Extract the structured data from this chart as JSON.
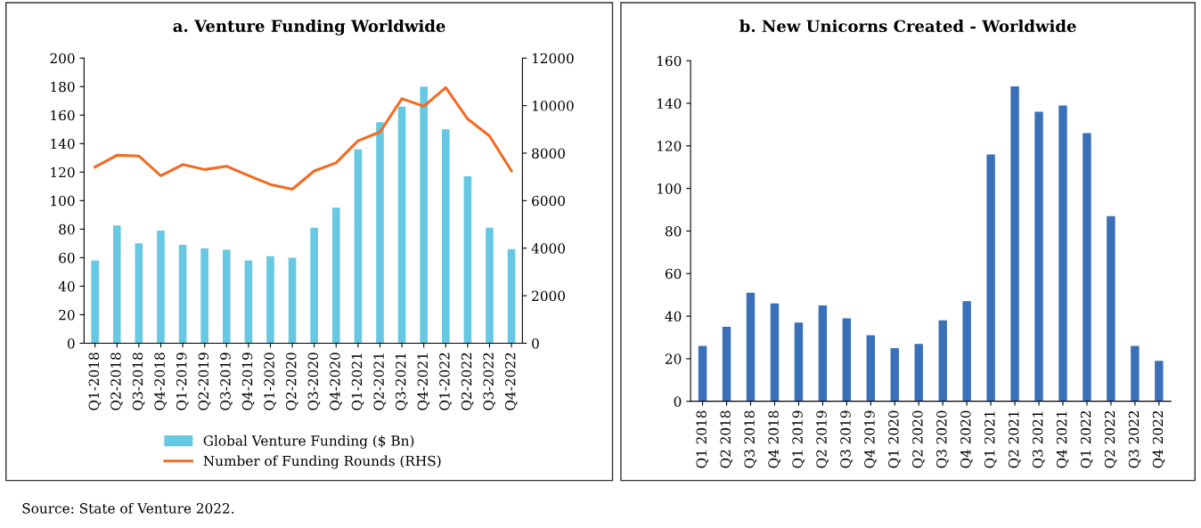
{
  "chart_data": [
    {
      "type": "bar",
      "title": "a. Venture Funding Worldwide",
      "categories": [
        "Q1-2018",
        "Q2-2018",
        "Q3-2018",
        "Q4-2018",
        "Q1-2019",
        "Q2-2019",
        "Q3-2019",
        "Q4-2019",
        "Q1-2020",
        "Q2-2020",
        "Q3-2020",
        "Q4-2020",
        "Q1-2021",
        "Q2-2021",
        "Q3-2021",
        "Q4-2021",
        "Q1-2022",
        "Q2-2022",
        "Q3-2022",
        "Q4-2022"
      ],
      "series": [
        {
          "name": "Global Venture Funding ($ Bn)",
          "type": "bar",
          "color": "#66c8e2",
          "values": [
            58,
            82.5,
            70,
            79,
            69,
            66.5,
            65.5,
            58,
            61,
            60,
            81,
            95,
            136,
            155,
            166,
            180,
            150,
            117,
            81,
            66
          ]
        },
        {
          "name": "Number of Funding Rounds (RHS)",
          "type": "line",
          "axis": "y2",
          "color": "#f26b21",
          "values": [
            7410,
            7910,
            7880,
            7050,
            7520,
            7310,
            7450,
            7060,
            6680,
            6480,
            7250,
            7590,
            8520,
            8890,
            10290,
            9970,
            10760,
            9440,
            8720,
            7250
          ]
        }
      ],
      "ylim": [
        0,
        200
      ],
      "yticks": [
        0,
        20,
        40,
        60,
        80,
        100,
        120,
        140,
        160,
        180,
        200
      ],
      "y2lim": [
        0,
        12000
      ],
      "y2ticks": [
        0,
        2000,
        4000,
        6000,
        8000,
        10000,
        12000
      ],
      "legend": "bottom",
      "grid": false,
      "annotations": [
        "Source: State of Venture 2022."
      ]
    },
    {
      "type": "bar",
      "title": "b. New Unicorns Created - Worldwide",
      "categories": [
        "Q1 2018",
        "Q2 2018",
        "Q3 2018",
        "Q4 2018",
        "Q1 2019",
        "Q2 2019",
        "Q3 2019",
        "Q4 2019",
        "Q1 2020",
        "Q2 2020",
        "Q3 2020",
        "Q4 2020",
        "Q1 2021",
        "Q2 2021",
        "Q3 2021",
        "Q4 2021",
        "Q1 2022",
        "Q2 2022",
        "Q3 2022",
        "Q4 2022"
      ],
      "series": [
        {
          "color": "#3a70b8",
          "values": [
            26,
            35,
            51,
            46,
            37,
            45,
            39,
            31,
            25,
            27,
            38,
            47,
            116,
            148,
            136,
            139,
            126,
            87,
            26,
            19
          ]
        }
      ],
      "ylim": [
        0,
        160
      ],
      "yticks": [
        0,
        20,
        40,
        60,
        80,
        100,
        120,
        140,
        160
      ],
      "grid": false
    }
  ]
}
